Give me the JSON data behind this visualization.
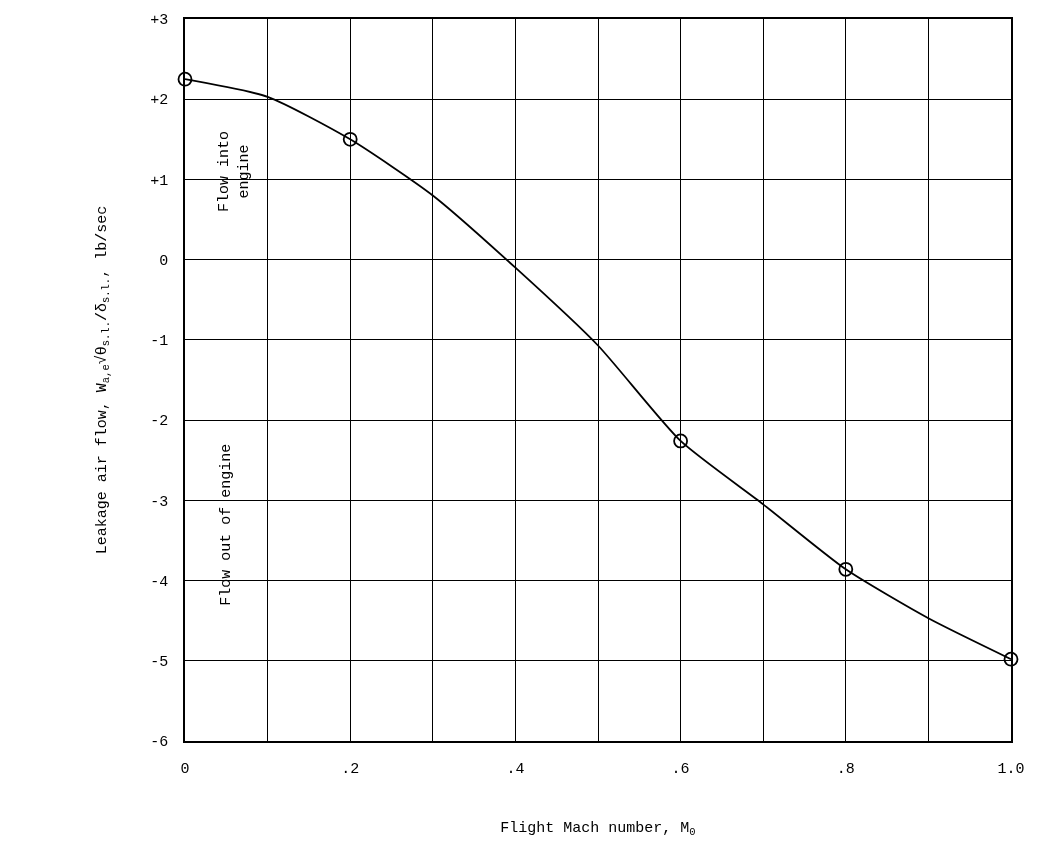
{
  "chart_data": {
    "type": "scatter",
    "xlabel": "Flight Mach number, M$_{0}$",
    "ylabel": "Leakage air flow, W$_{a,e}$√θ$_{s.l.}$/δ$_{s.l.}$, lb/sec",
    "x": [
      0,
      0.2,
      0.6,
      0.8,
      1.0
    ],
    "series": [
      {
        "color": "#000000",
        "marker": "circle",
        "values": [
          2.25,
          1.5,
          -2.26,
          -3.86,
          -4.98
        ]
      },
      {
        "type": "line",
        "color": "#000000",
        "marker": "none",
        "line_style": "solid",
        "x": [
          0,
          0.1,
          0.2,
          0.3,
          0.4,
          0.5,
          0.6,
          0.7,
          0.8,
          0.9,
          1.0
        ],
        "values": [
          2.25,
          2.03,
          1.5,
          0.8,
          -0.1,
          -1.07,
          -2.26,
          -3.05,
          -3.86,
          -4.47,
          -4.98
        ]
      }
    ],
    "annotations": [
      "Flow into\nengine",
      "Flow out of engine"
    ],
    "xlim": [
      0,
      1.0
    ],
    "xticks": [
      {
        "value": 0,
        "label": "0"
      },
      {
        "value": 0.1,
        "label": null
      },
      {
        "value": 0.2,
        "label": ".2"
      },
      {
        "value": 0.3,
        "label": null
      },
      {
        "value": 0.4,
        "label": ".4"
      },
      {
        "value": 0.5,
        "label": null
      },
      {
        "value": 0.6,
        "label": ".6"
      },
      {
        "value": 0.7,
        "label": null
      },
      {
        "value": 0.8,
        "label": ".8"
      },
      {
        "value": 0.9,
        "label": null
      },
      {
        "value": 1.0,
        "label": "1.0"
      }
    ],
    "ylim": [
      -6,
      3
    ],
    "yticks": [
      {
        "value": 3,
        "label": "+3"
      },
      {
        "value": 2,
        "label": "+2"
      },
      {
        "value": 1,
        "label": "+1"
      },
      {
        "value": 0,
        "label": "0"
      },
      {
        "value": -1,
        "label": "-1"
      },
      {
        "value": -2,
        "label": "-2"
      },
      {
        "value": -3,
        "label": "-3"
      },
      {
        "value": -4,
        "label": "-4"
      },
      {
        "value": -5,
        "label": "-5"
      },
      {
        "value": -6,
        "label": "-6"
      }
    ],
    "grid": true
  }
}
